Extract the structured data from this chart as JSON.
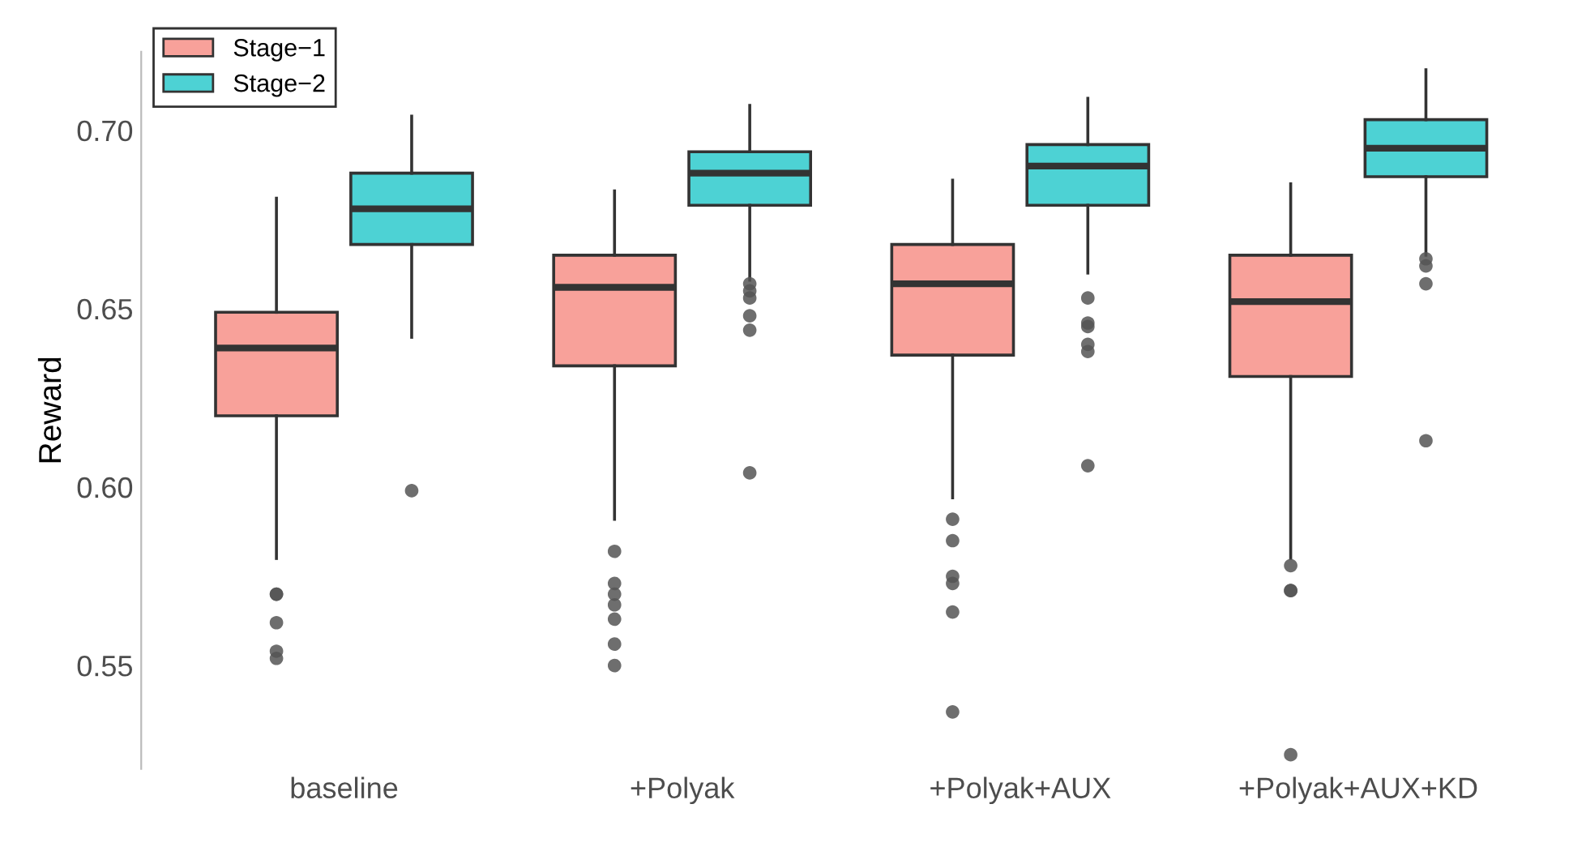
{
  "chart_data": {
    "type": "box",
    "ylabel": "Reward",
    "categories": [
      "baseline",
      "+Polyak",
      "+Polyak+AUX",
      "+Polyak+AUX+KD"
    ],
    "ylim": [
      0.521,
      0.722
    ],
    "yticks": [
      {
        "value": 0.55,
        "label": "0.55"
      },
      {
        "value": 0.6,
        "label": "0.60"
      },
      {
        "value": 0.65,
        "label": "0.65"
      },
      {
        "value": 0.7,
        "label": "0.70"
      }
    ],
    "grid": false,
    "legend": "top left",
    "series": [
      {
        "name": "Stage−1",
        "color": "#f8a19a",
        "boxes": [
          {
            "low": 0.58,
            "q1": 0.62,
            "median": 0.639,
            "q3": 0.649,
            "high": 0.681,
            "outliers": [
              0.57,
              0.57,
              0.562,
              0.554,
              0.552
            ]
          },
          {
            "low": 0.591,
            "q1": 0.634,
            "median": 0.656,
            "q3": 0.665,
            "high": 0.683,
            "outliers": [
              0.582,
              0.573,
              0.57,
              0.567,
              0.563,
              0.556,
              0.55
            ]
          },
          {
            "low": 0.597,
            "q1": 0.637,
            "median": 0.657,
            "q3": 0.668,
            "high": 0.686,
            "outliers": [
              0.591,
              0.585,
              0.575,
              0.573,
              0.565,
              0.537
            ]
          },
          {
            "low": 0.58,
            "q1": 0.631,
            "median": 0.652,
            "q3": 0.665,
            "high": 0.685,
            "outliers": [
              0.578,
              0.571,
              0.571,
              0.525
            ]
          }
        ]
      },
      {
        "name": "Stage−2",
        "color": "#4dd2d4",
        "boxes": [
          {
            "low": 0.642,
            "q1": 0.668,
            "median": 0.678,
            "q3": 0.688,
            "high": 0.704,
            "outliers": [
              0.599
            ]
          },
          {
            "low": 0.658,
            "q1": 0.679,
            "median": 0.688,
            "q3": 0.694,
            "high": 0.707,
            "outliers": [
              0.657,
              0.655,
              0.653,
              0.648,
              0.644,
              0.604
            ]
          },
          {
            "low": 0.66,
            "q1": 0.679,
            "median": 0.69,
            "q3": 0.696,
            "high": 0.709,
            "outliers": [
              0.653,
              0.646,
              0.645,
              0.64,
              0.638,
              0.606
            ]
          },
          {
            "low": 0.665,
            "q1": 0.687,
            "median": 0.695,
            "q3": 0.703,
            "high": 0.717,
            "outliers": [
              0.664,
              0.662,
              0.657,
              0.613
            ]
          }
        ]
      }
    ]
  }
}
